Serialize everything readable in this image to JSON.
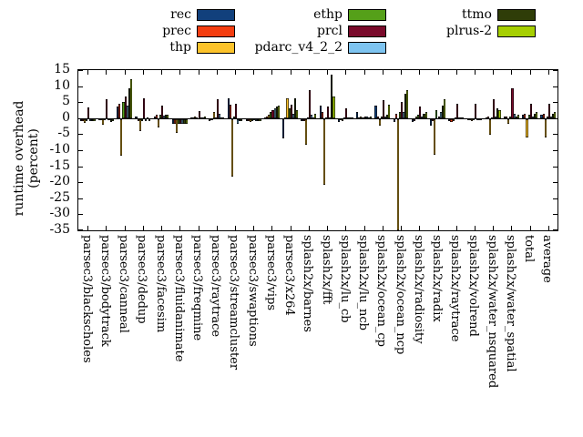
{
  "legend": {
    "entries": [
      {
        "label": "rec",
        "color": "#11407c",
        "col": 0,
        "row": 0
      },
      {
        "label": "prec",
        "color": "#f43d10",
        "col": 0,
        "row": 1
      },
      {
        "label": "thp",
        "color": "#fcc32b",
        "col": 0,
        "row": 2
      },
      {
        "label": "ethp",
        "color": "#55a019",
        "col": 1,
        "row": 0
      },
      {
        "label": "prcl",
        "color": "#7a0a2b",
        "col": 1,
        "row": 1
      },
      {
        "label": "pdarc_v4_2_2",
        "color": "#7ec4f0",
        "col": 1,
        "row": 2
      },
      {
        "label": "ttmo",
        "color": "#2f3d08",
        "col": 2,
        "row": 0
      },
      {
        "label": "plrus-2",
        "color": "#a6cf02",
        "col": 2,
        "row": 1
      }
    ]
  },
  "y_axis": {
    "title_line1": "runtime overhead",
    "title_line2": "(percent)",
    "min": -35,
    "max": 15,
    "step": 5
  },
  "chart_data": {
    "type": "bar",
    "title": "",
    "xlabel": "",
    "ylabel": "runtime overhead (percent)",
    "ylim": [
      -35,
      15
    ],
    "grid": false,
    "legend_position": "top",
    "categories": [
      "parsec3/blackscholes",
      "parsec3/bodytrack",
      "parsec3/canneal",
      "parsec3/dedup",
      "parsec3/facesim",
      "parsec3/fluidanimate",
      "parsec3/freqmine",
      "parsec3/raytrace",
      "parsec3/streamcluster",
      "parsec3/swaptions",
      "parsec3/vips",
      "parsec3/x264",
      "splash2x/barnes",
      "splash2x/fft",
      "splash2x/lu_cb",
      "splash2x/lu_ncb",
      "splash2x/ocean_cp",
      "splash2x/ocean_ncp",
      "splash2x/radiosity",
      "splash2x/radix",
      "splash2x/raytrace",
      "splash2x/volrend",
      "splash2x/water_nsquared",
      "splash2x/water_spatial",
      "total",
      "average"
    ],
    "series": [
      {
        "name": "rec",
        "color": "#11407c",
        "values": [
          -0.7,
          -0.3,
          3.5,
          0.5,
          0.5,
          -1.5,
          0.2,
          -0.5,
          6.2,
          -0.5,
          0.3,
          -6.0,
          -0.5,
          4.0,
          -1.0,
          2.0,
          3.8,
          -1.0,
          -1.0,
          -2.0,
          -0.5,
          -0.3,
          0.3,
          0.5,
          1.0,
          1.0
        ]
      },
      {
        "name": "prec",
        "color": "#f43d10",
        "values": [
          -0.7,
          -0.3,
          4.5,
          -0.5,
          1.0,
          -1.5,
          0.2,
          -0.3,
          4.2,
          -0.5,
          0.5,
          0.3,
          -0.7,
          2.0,
          -0.3,
          0.3,
          0.5,
          1.5,
          -0.5,
          -0.5,
          -1.0,
          -0.3,
          0.5,
          0.5,
          1.5,
          1.5
        ]
      },
      {
        "name": "thp",
        "color": "#fcc32b",
        "values": [
          -1.3,
          -1.8,
          -11.5,
          -3.7,
          -2.5,
          -4.3,
          0.5,
          2.0,
          -18.0,
          -1.0,
          1.0,
          6.3,
          -8.0,
          -20.5,
          -0.7,
          0.5,
          -2.0,
          -35.0,
          0.5,
          -11.0,
          -0.5,
          -0.5,
          -5.0,
          -1.5,
          -5.8,
          -5.8
        ]
      },
      {
        "name": "ethp",
        "color": "#55a019",
        "values": [
          -0.5,
          -0.3,
          5.1,
          -0.5,
          1.0,
          -1.5,
          0.3,
          0.3,
          0.5,
          -0.5,
          2.0,
          3.0,
          0.3,
          0.3,
          0.3,
          0.3,
          0.5,
          2.0,
          1.0,
          2.5,
          0.3,
          -0.3,
          0.3,
          0.5,
          1.0,
          0.5
        ]
      },
      {
        "name": "prcl",
        "color": "#7a0a2b",
        "values": [
          3.3,
          6.0,
          6.8,
          6.3,
          4.0,
          -1.5,
          2.3,
          6.0,
          4.5,
          -0.3,
          2.5,
          4.3,
          8.7,
          3.7,
          3.1,
          0.5,
          5.5,
          5.0,
          3.5,
          0.5,
          4.5,
          4.5,
          6.0,
          9.3,
          4.6,
          4.6
        ]
      },
      {
        "name": "pdarc_v4_2_2",
        "color": "#7ec4f0",
        "values": [
          -0.5,
          -0.3,
          4.0,
          -0.5,
          0.8,
          -1.5,
          0.3,
          1.5,
          -1.5,
          -0.5,
          3.0,
          1.5,
          1.0,
          0.3,
          0.3,
          0.5,
          0.5,
          2.0,
          0.5,
          2.0,
          0.3,
          -0.3,
          0.5,
          1.5,
          0.5,
          0.5
        ]
      },
      {
        "name": "ttmo",
        "color": "#2f3d08",
        "values": [
          -0.7,
          -1.0,
          9.3,
          0.3,
          1.0,
          -1.5,
          0.3,
          0.3,
          -0.5,
          -0.5,
          3.5,
          6.2,
          0.3,
          13.5,
          0.3,
          0.3,
          1.0,
          7.5,
          1.5,
          4.0,
          0.3,
          -0.3,
          3.0,
          0.5,
          1.5,
          1.5
        ]
      },
      {
        "name": "plrus-2",
        "color": "#a6cf02",
        "values": [
          -0.7,
          -0.5,
          12.1,
          -0.5,
          1.0,
          -1.5,
          0.5,
          0.3,
          -0.5,
          -0.5,
          4.0,
          2.5,
          1.3,
          6.8,
          0.3,
          0.5,
          4.3,
          8.7,
          2.0,
          6.0,
          0.3,
          -0.3,
          2.5,
          1.0,
          2.0,
          2.0
        ]
      }
    ]
  }
}
